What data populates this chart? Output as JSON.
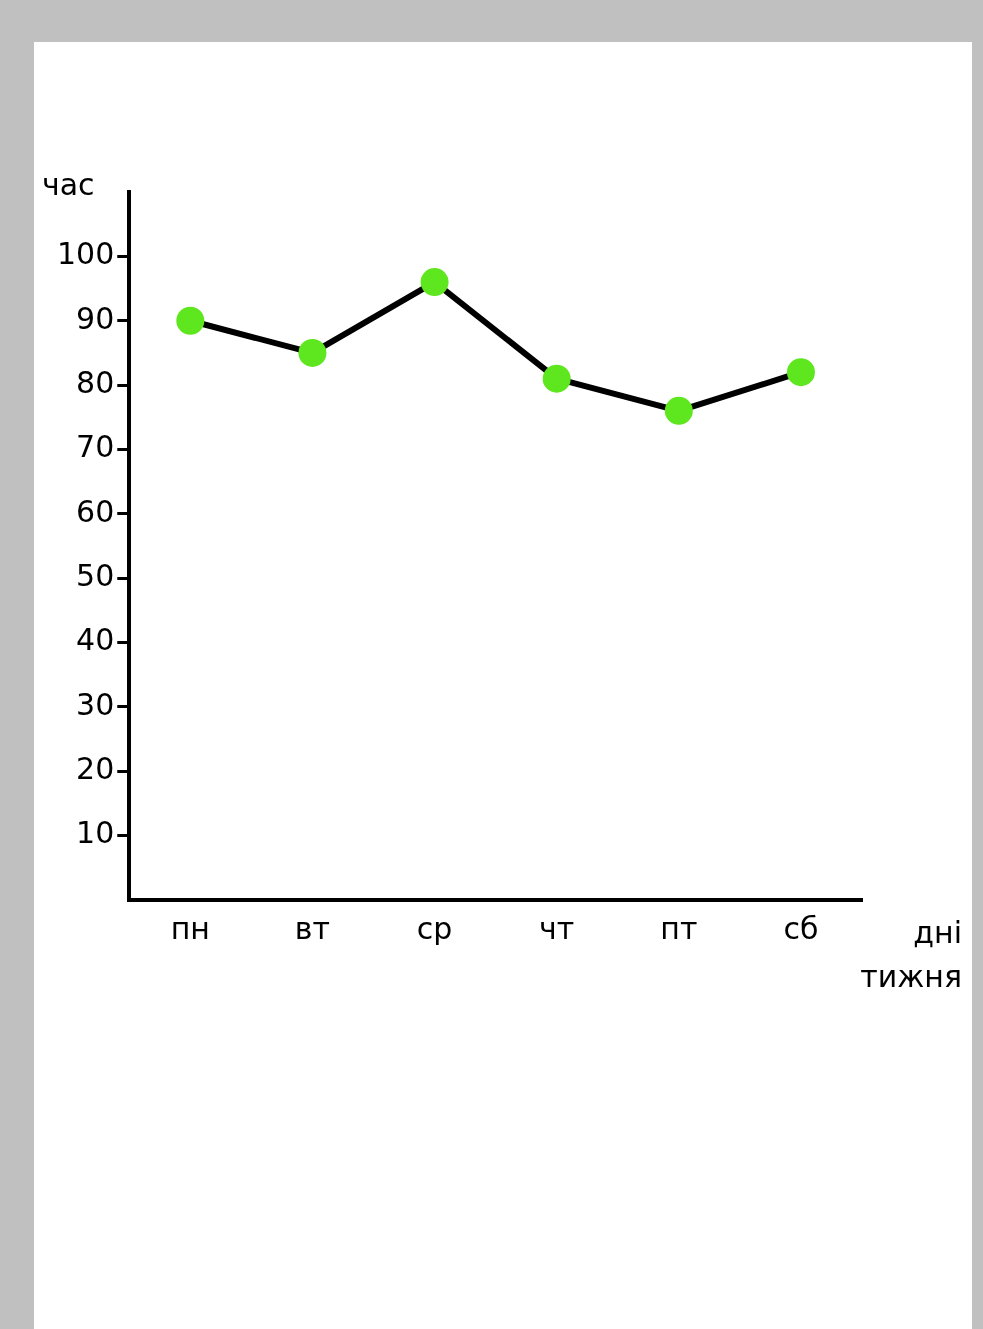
{
  "chart_data": {
    "type": "line",
    "ylabel": "час",
    "xlabel": "дні тижня",
    "categories": [
      "пн",
      "вт",
      "ср",
      "чт",
      "пт",
      "сб"
    ],
    "series": [
      {
        "color": "#000000",
        "colors": [
          "#5ee61e",
          "#5ee61e",
          "#5ee61e",
          "#5ee61e",
          "#5ee61e",
          "#5ee61e"
        ],
        "values": [
          90,
          85,
          96,
          81,
          76,
          82
        ]
      }
    ],
    "ylim": [
      0,
      110
    ],
    "yticks": [
      10,
      20,
      30,
      40,
      50,
      60,
      70,
      80,
      90,
      100
    ],
    "grid": false,
    "legend": false,
    "marker": "circle",
    "line_style": "solid"
  }
}
